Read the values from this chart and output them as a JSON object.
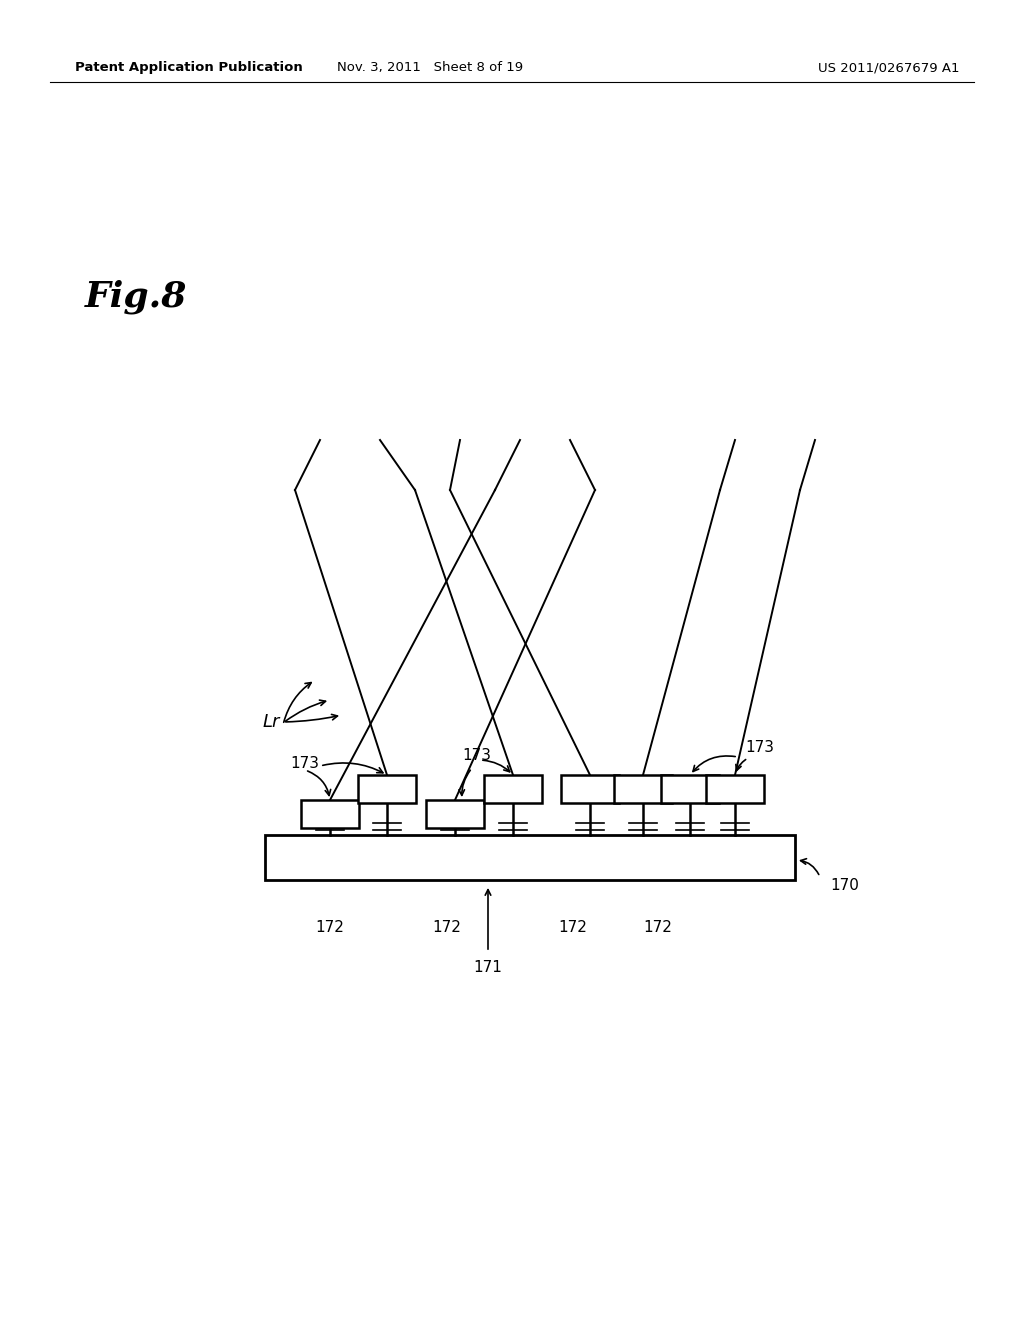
{
  "bg_color": "#ffffff",
  "line_color": "#000000",
  "header_left": "Patent Application Publication",
  "header_center": "Nov. 3, 2011   Sheet 8 of 19",
  "header_right": "US 2011/0267679 A1",
  "fig_label": "Fig.8",
  "label_170": "170",
  "label_171": "171",
  "label_172": "172",
  "label_173": "173",
  "label_Lr": "Lr",
  "page_width": 10.24,
  "page_height": 13.2
}
